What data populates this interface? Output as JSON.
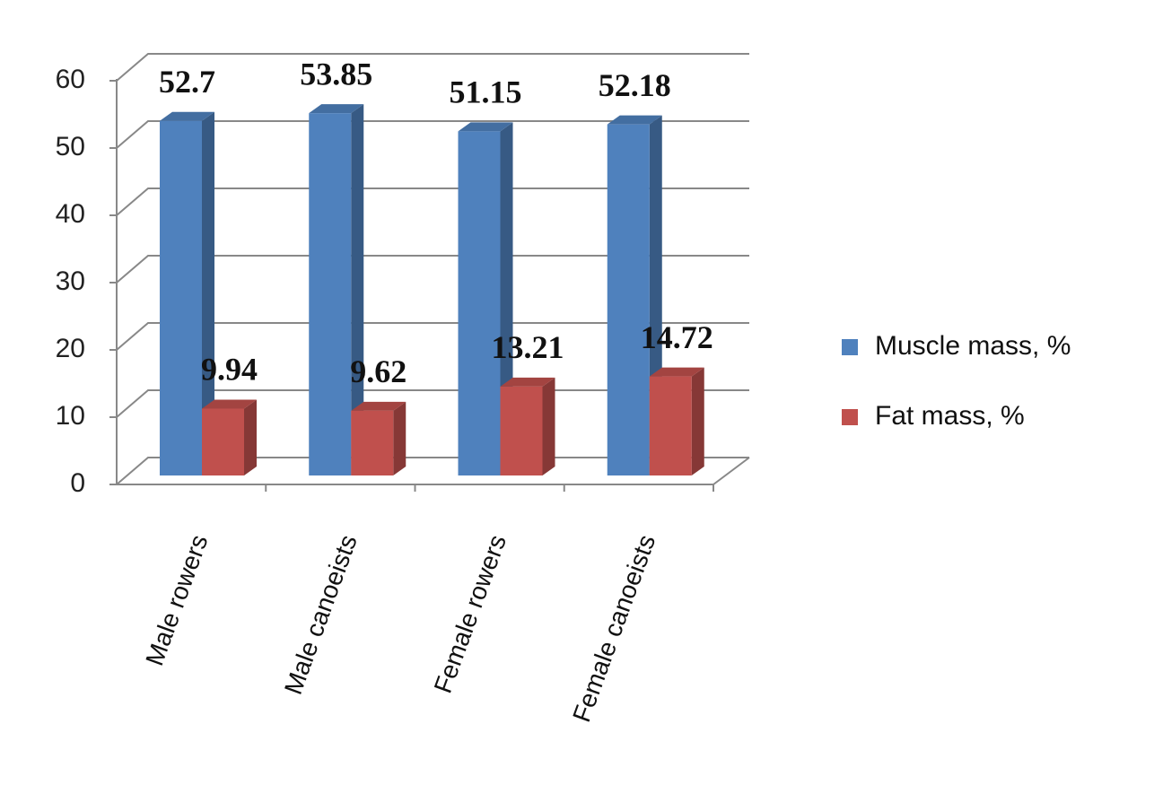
{
  "chart_data": {
    "type": "bar3d",
    "categories": [
      "Male rowers",
      "Male canoeists",
      "Female rowers",
      "Female canoeists"
    ],
    "series": [
      {
        "name": "Muscle mass, %",
        "color": "#4f81bd",
        "values": [
          52.7,
          53.85,
          51.15,
          52.18
        ]
      },
      {
        "name": "Fat mass, %",
        "color": "#c0504d",
        "values": [
          9.94,
          9.62,
          13.21,
          14.72
        ]
      }
    ],
    "ylim": [
      0,
      60
    ],
    "yticks": [
      0,
      10,
      20,
      30,
      40,
      50,
      60
    ],
    "grid": true,
    "legend": "right"
  }
}
